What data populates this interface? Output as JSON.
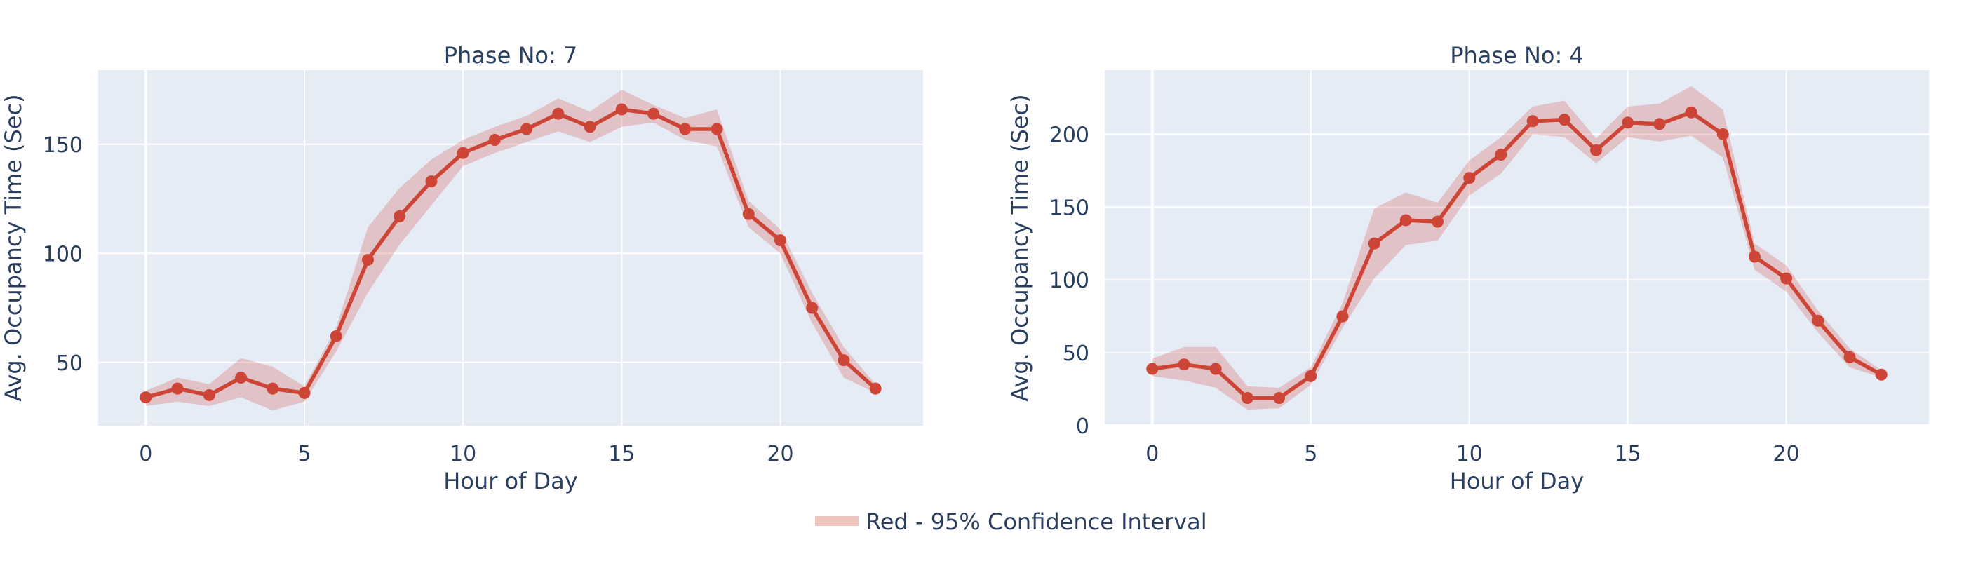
{
  "legend": {
    "label": "Red - 95% Confidence Interval",
    "swatch_color": "#f0c4be"
  },
  "colors": {
    "line": "#cd4536",
    "band": "#d3423b",
    "plot_background": "#e5ecf6",
    "text": "#2a3f5f"
  },
  "chart_data": [
    {
      "type": "line",
      "title": "Phase No: 7",
      "xlabel": "Hour of Day",
      "ylabel": "Avg. Occupancy Time (Sec)",
      "xlim": [
        -1.5,
        24.5
      ],
      "ylim": [
        21,
        184
      ],
      "x_ticks": [
        0,
        5,
        10,
        15,
        20
      ],
      "y_ticks": [
        50,
        100,
        150
      ],
      "grid": true,
      "x": [
        0,
        1,
        2,
        3,
        4,
        5,
        6,
        7,
        8,
        9,
        10,
        11,
        12,
        13,
        14,
        15,
        16,
        17,
        18,
        19,
        20,
        21,
        22,
        23
      ],
      "series": [
        {
          "values": [
            34,
            38,
            35,
            43,
            38,
            36,
            62,
            97,
            117,
            133,
            146,
            152,
            157,
            164,
            158,
            166,
            164,
            157,
            157,
            118,
            106,
            75,
            51,
            38
          ],
          "ci_lower": [
            30,
            32,
            30,
            34,
            28,
            32,
            55,
            82,
            104,
            122,
            140,
            146,
            151,
            156,
            151,
            158,
            160,
            152,
            149,
            112,
            100,
            68,
            43,
            36
          ],
          "ci_upper": [
            37,
            43,
            40,
            52,
            48,
            39,
            66,
            112,
            130,
            143,
            152,
            158,
            163,
            171,
            165,
            175,
            168,
            162,
            166,
            124,
            111,
            82,
            57,
            40
          ]
        }
      ]
    },
    {
      "type": "line",
      "title": "Phase No: 4",
      "xlabel": "Hour of Day",
      "ylabel": "Avg. Occupancy Time (Sec)",
      "xlim": [
        -1.5,
        24.5
      ],
      "ylim": [
        0,
        244
      ],
      "x_ticks": [
        0,
        5,
        10,
        15,
        20
      ],
      "y_ticks": [
        0,
        50,
        100,
        150,
        200
      ],
      "grid": true,
      "x": [
        0,
        1,
        2,
        3,
        4,
        5,
        6,
        7,
        8,
        9,
        10,
        11,
        12,
        13,
        14,
        15,
        16,
        17,
        18,
        19,
        20,
        21,
        22,
        23
      ],
      "series": [
        {
          "values": [
            39,
            42,
            39,
            19,
            19,
            34,
            75,
            125,
            141,
            140,
            170,
            186,
            209,
            210,
            189,
            208,
            207,
            215,
            200,
            116,
            101,
            72,
            47,
            35
          ],
          "ci_lower": [
            34,
            31,
            26,
            11,
            12,
            28,
            67,
            101,
            124,
            127,
            158,
            173,
            200,
            198,
            180,
            198,
            195,
            199,
            184,
            107,
            92,
            64,
            40,
            33
          ],
          "ci_upper": [
            46,
            54,
            54,
            27,
            26,
            40,
            84,
            149,
            160,
            153,
            182,
            198,
            219,
            223,
            197,
            219,
            221,
            233,
            217,
            125,
            110,
            79,
            53,
            38
          ]
        }
      ]
    }
  ]
}
